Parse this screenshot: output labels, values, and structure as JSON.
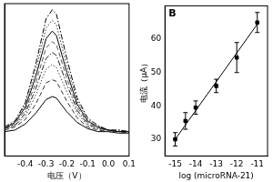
{
  "chart_data": [
    {
      "type": "line",
      "x": [
        -0.5,
        -0.45,
        -0.4,
        -0.35,
        -0.3,
        -0.27,
        -0.25,
        -0.2,
        -0.15,
        -0.1,
        -0.05,
        0,
        0.05,
        0.1
      ],
      "series": [
        {
          "color": "#000000",
          "line_style": "dashdot",
          "values": [
            1.9,
            2.3,
            3.5,
            6.0,
            9.0,
            9.6,
            9.3,
            6.4,
            3.8,
            2.5,
            2.0,
            1.7,
            1.7,
            1.6
          ]
        },
        {
          "color": "#333333",
          "line_style": "dotted",
          "values": [
            1.9,
            2.2,
            3.4,
            5.6,
            8.4,
            8.9,
            8.6,
            5.9,
            3.6,
            2.4,
            1.9,
            1.7,
            1.7,
            1.6
          ]
        },
        {
          "color": "#000000",
          "line_style": "solid",
          "values": [
            1.8,
            2.2,
            3.2,
            5.2,
            7.7,
            8.2,
            7.9,
            5.5,
            3.4,
            2.3,
            1.9,
            1.7,
            1.6,
            1.6
          ]
        },
        {
          "color": "#555555",
          "line_style": "dashed",
          "values": [
            1.8,
            2.1,
            3.0,
            4.8,
            7.1,
            7.5,
            7.3,
            5.1,
            3.2,
            2.2,
            1.9,
            1.7,
            1.6,
            1.6
          ]
        },
        {
          "color": "#222222",
          "line_style": "dashdot",
          "values": [
            1.8,
            2.0,
            2.8,
            4.4,
            6.4,
            6.8,
            6.6,
            4.7,
            3.0,
            2.1,
            1.8,
            1.7,
            1.6,
            1.6
          ]
        },
        {
          "color": "#444444",
          "line_style": "dotted",
          "values": [
            1.7,
            2.0,
            2.6,
            4.0,
            5.7,
            6.0,
            5.8,
            4.2,
            2.8,
            2.0,
            1.8,
            1.6,
            1.6,
            1.5
          ]
        },
        {
          "color": "#333333",
          "line_style": "dashed",
          "values": [
            1.7,
            1.9,
            2.4,
            3.4,
            4.8,
            5.0,
            4.9,
            3.6,
            2.5,
            1.9,
            1.7,
            1.6,
            1.6,
            1.5
          ]
        },
        {
          "color": "#000000",
          "line_style": "solid",
          "values": [
            1.6,
            1.7,
            2.1,
            2.8,
            3.7,
            3.9,
            3.8,
            2.9,
            2.2,
            1.8,
            1.6,
            1.6,
            1.5,
            1.5
          ]
        }
      ],
      "xlim": [
        -0.5,
        0.1
      ],
      "xticks": [
        -0.4,
        -0.3,
        -0.2,
        -0.1,
        {
          "value": 0,
          "label": "0.0"
        },
        0.1
      ],
      "ylim": [
        0,
        10
      ],
      "tick_labels": "x",
      "grid": false,
      "x_label": "电压（V）"
    },
    {
      "type": "scatter",
      "title": "B",
      "series": [
        {
          "type": "scatter",
          "marker": "square",
          "color": "#000000",
          "x": [
            -15,
            -14.5,
            -14,
            -13,
            -12,
            -11
          ],
          "values": [
            30,
            35.5,
            39.5,
            46,
            54.5,
            65
          ],
          "errors": [
            2,
            2.5,
            2,
            2,
            4.5,
            3
          ]
        },
        {
          "type": "line",
          "line_style": "solid",
          "color": "#000000",
          "x": [
            -15,
            -11
          ],
          "values": [
            30,
            64.5
          ]
        }
      ],
      "xlim": [
        -15.5,
        -10.5
      ],
      "xticks": [
        -15,
        -14,
        -13,
        -12,
        -11
      ],
      "ylim": [
        25,
        70
      ],
      "yticks": [
        30,
        40,
        50,
        60
      ],
      "grid": false,
      "x_label": "log (microRNA-21)",
      "y_label": "电流（μA）"
    }
  ]
}
